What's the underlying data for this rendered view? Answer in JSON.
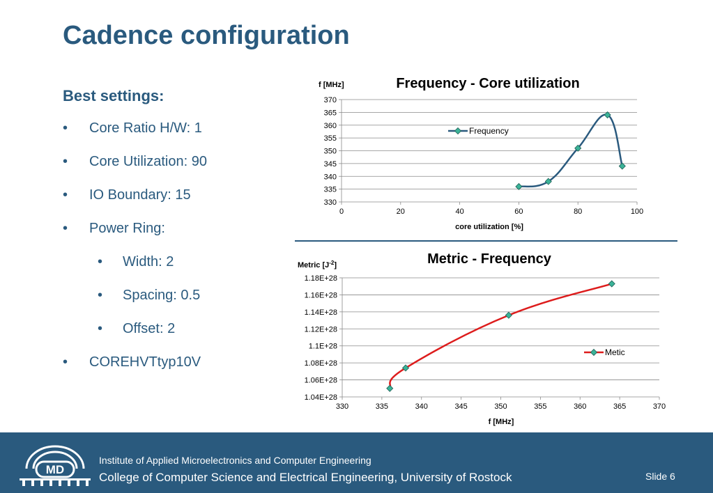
{
  "slide": {
    "title": "Cadence configuration",
    "bullet_heading": "Best settings:",
    "bullet_marker": "•",
    "bullets": [
      {
        "text": "Core Ratio H/W: 1",
        "level": 1
      },
      {
        "text": "Core Utilization: 90",
        "level": 1
      },
      {
        "text": "IO Boundary: 15",
        "level": 1
      },
      {
        "text": "Power Ring:",
        "level": 1
      },
      {
        "text": "Width:  2",
        "level": 2
      },
      {
        "text": "Spacing: 0.5",
        "level": 2
      },
      {
        "text": "Offset: 2",
        "level": 2
      },
      {
        "text": "COREHVTtyp10V",
        "level": 1
      }
    ]
  },
  "footer": {
    "institute": "Institute of Applied Microelectronics and Computer Engineering",
    "college": "College of Computer Science and Electrical Engineering, University of Rostock",
    "slide_number": "Slide 6",
    "logo_text": "MD"
  },
  "colors": {
    "title": "#2a5a7e",
    "footer": "#2a5a7e",
    "series1": "#2a5a7e",
    "series2": "#dd1c1c",
    "marker": "#3bb398"
  },
  "chart_data": [
    {
      "type": "line",
      "title": "Frequency - Core utilization",
      "xlabel": "core utilization [%]",
      "ylabel": "f [MHz]",
      "xlim": [
        0,
        100
      ],
      "ylim": [
        330,
        370
      ],
      "xticks": [
        "0",
        "20",
        "40",
        "60",
        "80",
        "100"
      ],
      "yticks": [
        "330",
        "335",
        "340",
        "345",
        "350",
        "355",
        "360",
        "365",
        "370"
      ],
      "grid": true,
      "legend": "top-center",
      "series": [
        {
          "name": "Frequency",
          "x": [
            60,
            70,
            80,
            90,
            95
          ],
          "y": [
            336,
            338,
            351,
            364,
            344
          ]
        }
      ]
    },
    {
      "type": "line",
      "title": "Metric - Frequency",
      "xlabel": "f [MHz]",
      "ylabel_text": "Metric [J",
      "ylabel_sup": "-2",
      "ylabel_end": "]",
      "xlim": [
        330,
        370
      ],
      "ylim": [
        1.04e+28,
        1.18e+28
      ],
      "xticks": [
        "330",
        "335",
        "340",
        "345",
        "350",
        "355",
        "360",
        "365",
        "370"
      ],
      "yticks": [
        "1.04E+28",
        "1.06E+28",
        "1.08E+28",
        "1.1E+28",
        "1.12E+28",
        "1.14E+28",
        "1.16E+28",
        "1.18E+28"
      ],
      "grid": true,
      "legend": "right",
      "series": [
        {
          "name": "Metic",
          "x": [
            336,
            338,
            351,
            364
          ],
          "y": [
            1.05e+28,
            1.074e+28,
            1.136e+28,
            1.173e+28
          ]
        }
      ]
    }
  ]
}
